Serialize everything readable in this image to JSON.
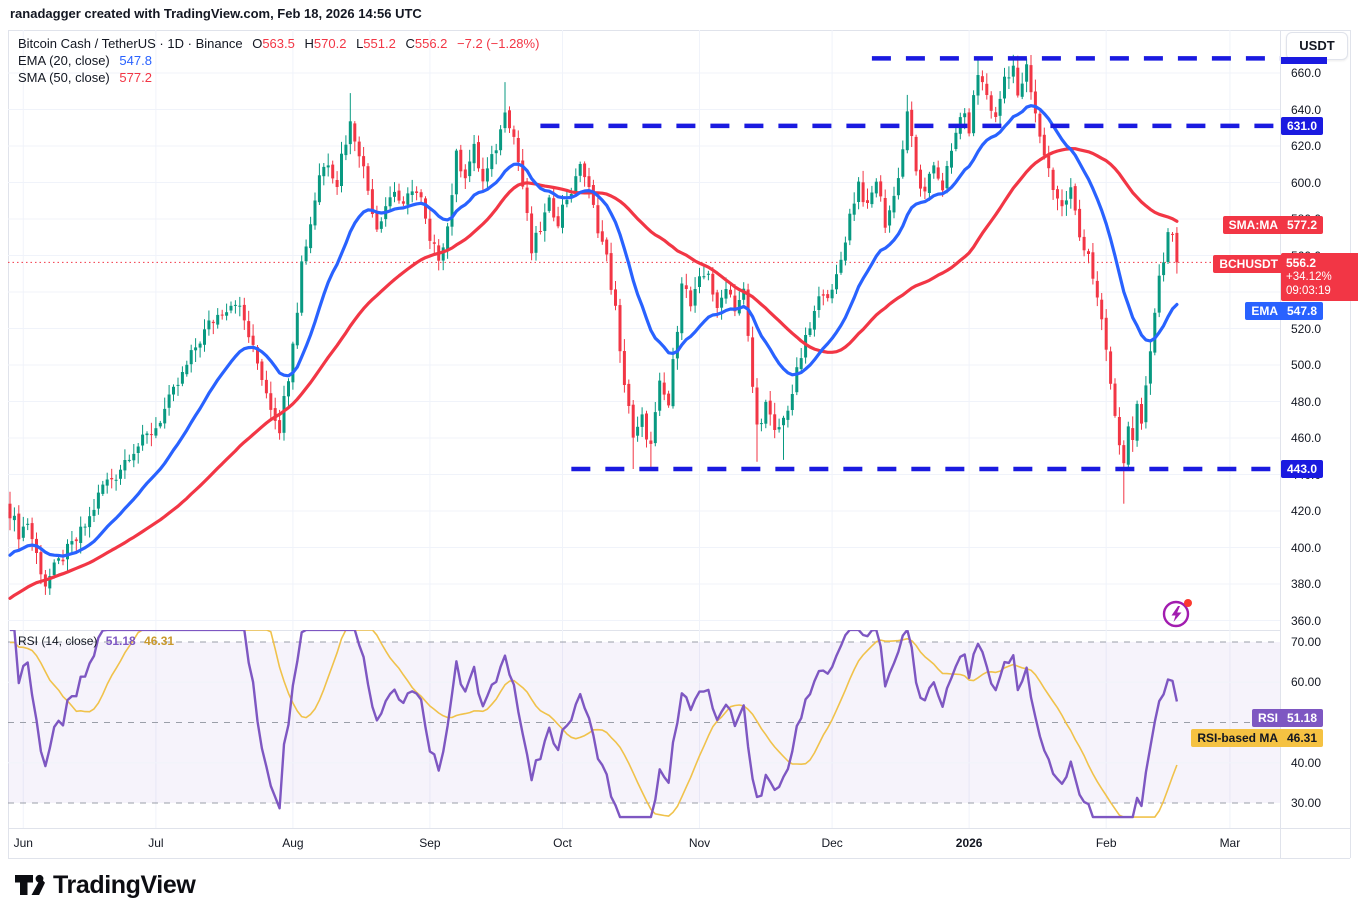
{
  "header": {
    "attribution": "ranadagger created with TradingView.com, Feb 18, 2026 14:56 UTC"
  },
  "legend": {
    "symbol": "Bitcoin Cash / TetherUS",
    "sep1": "·",
    "interval": "1D",
    "sep2": "·",
    "exchange": "Binance",
    "o_label": "O",
    "o": "563.5",
    "h_label": "H",
    "h": "570.2",
    "l_label": "L",
    "l": "551.2",
    "c_label": "C",
    "c": "556.2",
    "change": "−7.2 (−1.28%)",
    "ema_label": "EMA (20, close)",
    "ema_value": "547.8",
    "sma_label": "SMA (50, close)",
    "sma_value": "577.2"
  },
  "rsi_legend": {
    "label": "RSI (14, close)",
    "rsi_value": "51.18",
    "ma_value": "46.31"
  },
  "axis": {
    "currency": "USDT",
    "price_ticks": [
      660,
      640,
      620,
      600,
      580,
      560,
      540,
      520,
      500,
      480,
      460,
      440,
      420,
      400,
      380,
      360
    ],
    "rsi_ticks": [
      70,
      60,
      40,
      30
    ]
  },
  "badges": {
    "sma_name": "SMA:MA",
    "sma_value": "577.2",
    "symbol_name": "BCHUSDT",
    "price_value": "556.2",
    "price_change_pct": "+34.12%",
    "price_countdown": "09:03:19",
    "ema_name": "EMA",
    "ema_value": "547.8",
    "level_mid": "631.0",
    "level_low": "443.0",
    "rsi_name": "RSI",
    "rsi_value": "51.18",
    "rsi_ma_name": "RSI-based MA",
    "rsi_ma_value": "46.31"
  },
  "time_axis": {
    "months": [
      {
        "label": "Jun",
        "day": 3,
        "bold": false
      },
      {
        "label": "Jul",
        "day": 33,
        "bold": false
      },
      {
        "label": "Aug",
        "day": 64,
        "bold": false
      },
      {
        "label": "Sep",
        "day": 95,
        "bold": false
      },
      {
        "label": "Oct",
        "day": 125,
        "bold": false
      },
      {
        "label": "Nov",
        "day": 156,
        "bold": false
      },
      {
        "label": "Dec",
        "day": 186,
        "bold": false
      },
      {
        "label": "2026",
        "day": 217,
        "bold": true
      },
      {
        "label": "Feb",
        "day": 248,
        "bold": false
      },
      {
        "label": "Mar",
        "day": 276,
        "bold": false
      }
    ]
  },
  "colors": {
    "up": "#089981",
    "down": "#f23645",
    "ema": "#2962ff",
    "sma": "#f23645",
    "level_blue": "#1a1ae0",
    "current_price_red": "#f23645",
    "rsi": "#7e57c2",
    "rsi_ma": "#f0c24b",
    "grid": "#f0f3fa",
    "guide_gray": "#9b9fa9",
    "band_fill": "rgba(126,87,194,0.07)",
    "flash_purple": "#a21caf",
    "flash_dot": "#fb3a2f",
    "logo_ink": "#0c0d12"
  },
  "branding": {
    "logo_text": "TradingView"
  },
  "chart_data": [
    {
      "type": "candlestick",
      "symbol": "BCHUSDT",
      "timeframe": "1D",
      "exchange": "Binance",
      "ylim": [
        352,
        678
      ],
      "days_total": 264,
      "current_price": 556.2,
      "ohlc_today": {
        "open": 563.5,
        "high": 570.2,
        "low": 551.2,
        "close": 556.2,
        "change": -7.2,
        "change_pct": -1.28
      },
      "close_anchors": [
        [
          0,
          420
        ],
        [
          2,
          408
        ],
        [
          4,
          414
        ],
        [
          6,
          396
        ],
        [
          8,
          380
        ],
        [
          10,
          388
        ],
        [
          12,
          395
        ],
        [
          15,
          404
        ],
        [
          18,
          416
        ],
        [
          21,
          434
        ],
        [
          24,
          440
        ],
        [
          27,
          452
        ],
        [
          30,
          458
        ],
        [
          33,
          466
        ],
        [
          36,
          480
        ],
        [
          39,
          494
        ],
        [
          42,
          510
        ],
        [
          45,
          522
        ],
        [
          48,
          530
        ],
        [
          51,
          536
        ],
        [
          53,
          524
        ],
        [
          55,
          508
        ],
        [
          57,
          494
        ],
        [
          59,
          478
        ],
        [
          61,
          466
        ],
        [
          63,
          495
        ],
        [
          64,
          515
        ],
        [
          65,
          532
        ],
        [
          66,
          556
        ],
        [
          68,
          578
        ],
        [
          70,
          605
        ],
        [
          72,
          612
        ],
        [
          74,
          600
        ],
        [
          75,
          615
        ],
        [
          77,
          632
        ],
        [
          79,
          618
        ],
        [
          81,
          596
        ],
        [
          83,
          576
        ],
        [
          85,
          588
        ],
        [
          87,
          596
        ],
        [
          89,
          585
        ],
        [
          91,
          598
        ],
        [
          93,
          590
        ],
        [
          95,
          566
        ],
        [
          97,
          560
        ],
        [
          99,
          576
        ],
        [
          101,
          614
        ],
        [
          103,
          605
        ],
        [
          105,
          618
        ],
        [
          107,
          600
        ],
        [
          109,
          612
        ],
        [
          111,
          628
        ],
        [
          112,
          642
        ],
        [
          114,
          625
        ],
        [
          116,
          598
        ],
        [
          118,
          562
        ],
        [
          120,
          575
        ],
        [
          122,
          588
        ],
        [
          124,
          580
        ],
        [
          126,
          592
        ],
        [
          128,
          600
        ],
        [
          129,
          612
        ],
        [
          131,
          595
        ],
        [
          133,
          576
        ],
        [
          135,
          558
        ],
        [
          137,
          530
        ],
        [
          138,
          505
        ],
        [
          140,
          478
        ],
        [
          141,
          458
        ],
        [
          143,
          470
        ],
        [
          145,
          455
        ],
        [
          147,
          488
        ],
        [
          149,
          478
        ],
        [
          151,
          522
        ],
        [
          152,
          548
        ],
        [
          154,
          532
        ],
        [
          156,
          545
        ],
        [
          158,
          552
        ],
        [
          160,
          528
        ],
        [
          162,
          545
        ],
        [
          164,
          532
        ],
        [
          166,
          540
        ],
        [
          168,
          488
        ],
        [
          169,
          466
        ],
        [
          171,
          478
        ],
        [
          173,
          462
        ],
        [
          175,
          470
        ],
        [
          177,
          485
        ],
        [
          179,
          505
        ],
        [
          182,
          528
        ],
        [
          184,
          542
        ],
        [
          186,
          538
        ],
        [
          188,
          558
        ],
        [
          190,
          582
        ],
        [
          192,
          600
        ],
        [
          194,
          585
        ],
        [
          196,
          602
        ],
        [
          198,
          578
        ],
        [
          200,
          592
        ],
        [
          202,
          618
        ],
        [
          203,
          640
        ],
        [
          205,
          605
        ],
        [
          207,
          592
        ],
        [
          209,
          610
        ],
        [
          211,
          598
        ],
        [
          213,
          615
        ],
        [
          215,
          638
        ],
        [
          217,
          630
        ],
        [
          219,
          660
        ],
        [
          221,
          648
        ],
        [
          223,
          634
        ],
        [
          225,
          658
        ],
        [
          227,
          664
        ],
        [
          228,
          645
        ],
        [
          229,
          655
        ],
        [
          230,
          662
        ],
        [
          232,
          636
        ],
        [
          234,
          616
        ],
        [
          236,
          598
        ],
        [
          238,
          586
        ],
        [
          240,
          596
        ],
        [
          242,
          570
        ],
        [
          244,
          562
        ],
        [
          246,
          535
        ],
        [
          248,
          508
        ],
        [
          250,
          470
        ],
        [
          252,
          445
        ],
        [
          253,
          470
        ],
        [
          254,
          455
        ],
        [
          255,
          475
        ],
        [
          256,
          465
        ],
        [
          257,
          490
        ],
        [
          258,
          510
        ],
        [
          259,
          530
        ],
        [
          260,
          548
        ],
        [
          261,
          560
        ],
        [
          262,
          572
        ],
        [
          263,
          568
        ],
        [
          264,
          556.2
        ]
      ],
      "jitter": 4,
      "wick_overrides": {
        "8": {
          "low": 374
        },
        "77": {
          "high": 649
        },
        "112": {
          "high": 655
        },
        "141": {
          "low": 443
        },
        "145": {
          "low": 444
        },
        "169": {
          "low": 447
        },
        "175": {
          "low": 448
        },
        "203": {
          "high": 648
        },
        "219": {
          "high": 668
        },
        "227": {
          "high": 670
        },
        "230": {
          "high": 668
        },
        "252": {
          "low": 424
        },
        "262": {
          "high": 575
        }
      },
      "ma_seed": {
        "length": 55,
        "start": 326,
        "end": 408,
        "jitter": 6
      },
      "overlays": [
        {
          "name": "EMA (20, close)",
          "value": 547.8
        },
        {
          "name": "SMA (50, close)",
          "value": 577.2
        }
      ],
      "levels": [
        {
          "value": 668,
          "start_day": 195
        },
        {
          "value": 631,
          "start_day": 120
        },
        {
          "value": 443,
          "start_day": 127
        }
      ]
    },
    {
      "type": "line",
      "name": "RSI (14, close)",
      "ylim": [
        24.8,
        76
      ],
      "guides_dashed": [
        70,
        50,
        30
      ],
      "guides_solid": [
        60,
        40
      ],
      "band": [
        30,
        70
      ],
      "series": [
        {
          "name": "RSI",
          "last": 51.18
        },
        {
          "name": "RSI-based MA",
          "last": 46.31
        }
      ]
    }
  ]
}
